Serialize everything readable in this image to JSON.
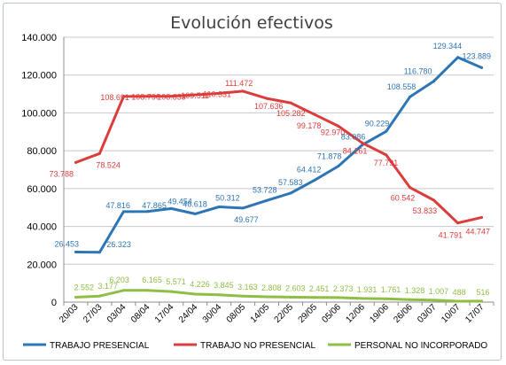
{
  "chart_data": {
    "type": "line",
    "title": "Evolución efectivos",
    "xlabel": "",
    "ylabel": "",
    "ylim": [
      0,
      140000
    ],
    "yticks": [
      "0",
      "20.000",
      "40.000",
      "60.000",
      "80.000",
      "100.000",
      "120.000",
      "140.000"
    ],
    "grid": true,
    "legend_position": "bottom",
    "categories": [
      "20/03",
      "27/03",
      "03/04",
      "08/04",
      "17/04",
      "24/04",
      "30/04",
      "08/05",
      "14/05",
      "22/05",
      "29/05",
      "05/06",
      "12/06",
      "19/06",
      "26/06",
      "03/07",
      "10/07",
      "17/07"
    ],
    "series": [
      {
        "name": "TRABAJO PRESENCIAL",
        "color": "#2e75b6",
        "values": [
          26453,
          26323,
          47816,
          47865,
          49454,
          46618,
          50312,
          49677,
          53728,
          57583,
          64412,
          71878,
          83086,
          90229,
          108558,
          116780,
          129344,
          123889
        ],
        "labels": [
          "26.453",
          "26.323",
          "47.816",
          "47.865",
          "49.454",
          "46.618",
          "50.312",
          "49.677",
          "53.728",
          "57.583",
          "64.412",
          "71.878",
          "83.086",
          "90.229",
          "108.558",
          "116.780",
          "129.344",
          "123.889"
        ]
      },
      {
        "name": "TRABAJO NO PRESENCIAL",
        "color": "#dc3c3c",
        "values": [
          73788,
          78524,
          108691,
          108790,
          108833,
          109511,
          110331,
          111472,
          107636,
          105282,
          99178,
          92970,
          84161,
          77791,
          60542,
          53833,
          41791,
          44747
        ],
        "labels": [
          "73.788",
          "78.524",
          "108.691",
          "108.790",
          "108.833",
          "109.511",
          "110.331",
          "111.472",
          "107.636",
          "105.282",
          "99.178",
          "92.970",
          "84.161",
          "77.791",
          "60.542",
          "53.833",
          "41.791",
          "44.747"
        ]
      },
      {
        "name": "PERSONAL NO INCORPORADO",
        "color": "#8ebf44",
        "values": [
          2552,
          3177,
          6203,
          6165,
          5571,
          4226,
          3845,
          3163,
          2808,
          2603,
          2451,
          2373,
          1931,
          1761,
          1328,
          1007,
          488,
          516
        ],
        "labels": [
          "2.552",
          "3.177",
          "6.203",
          "6.165",
          "5.571",
          "4.226",
          "3.845",
          "3.163",
          "2.808",
          "2.603",
          "2.451",
          "2.373",
          "1.931",
          "1.761",
          "1.328",
          "1.007",
          "488",
          "516"
        ]
      }
    ]
  }
}
